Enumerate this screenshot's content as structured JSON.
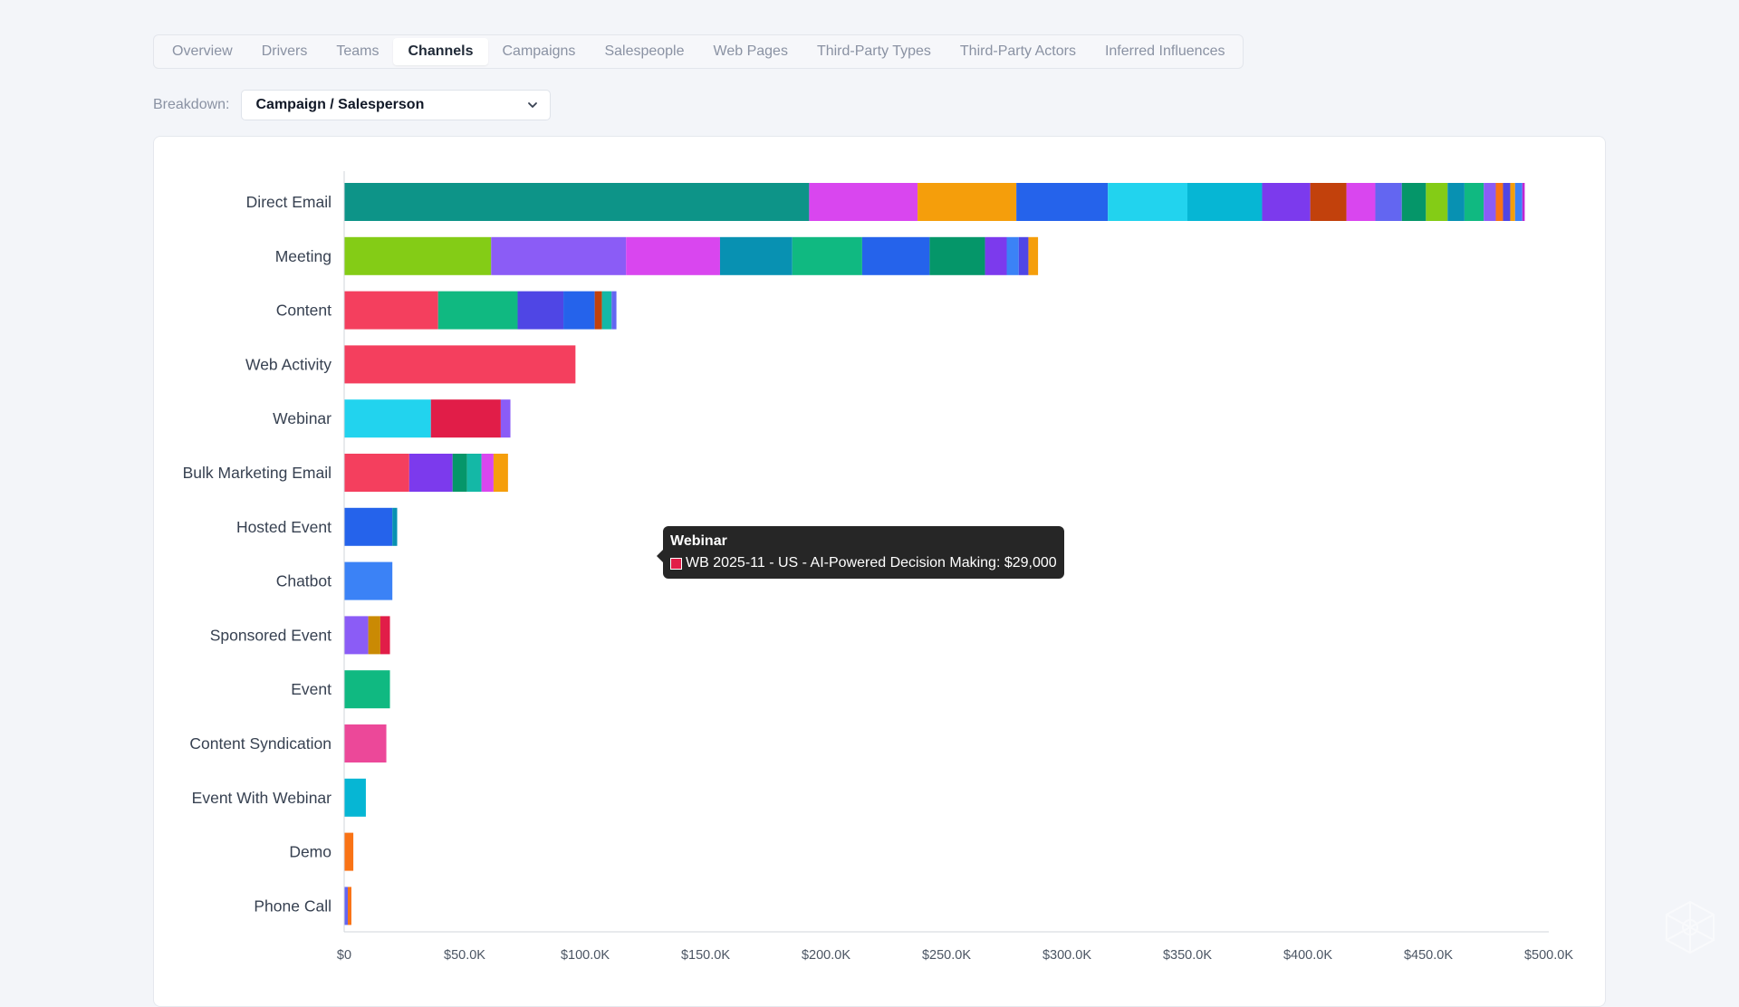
{
  "tabs": [
    {
      "label": "Overview",
      "active": false
    },
    {
      "label": "Drivers",
      "active": false
    },
    {
      "label": "Teams",
      "active": false
    },
    {
      "label": "Channels",
      "active": true
    },
    {
      "label": "Campaigns",
      "active": false
    },
    {
      "label": "Salespeople",
      "active": false
    },
    {
      "label": "Web Pages",
      "active": false
    },
    {
      "label": "Third-Party Types",
      "active": false
    },
    {
      "label": "Third-Party Actors",
      "active": false
    },
    {
      "label": "Inferred Influences",
      "active": false
    }
  ],
  "breakdown": {
    "label": "Breakdown:",
    "selected": "Campaign / Salesperson"
  },
  "tooltip": {
    "title": "Webinar",
    "text": "WB 2025-11 - US - AI-Powered Decision Making: $29,000",
    "color": "#e11d48"
  },
  "chart_data": {
    "type": "bar",
    "orientation": "horizontal",
    "stacked": true,
    "xlim": [
      0,
      500000
    ],
    "x_ticks": [
      0,
      50000,
      100000,
      150000,
      200000,
      250000,
      300000,
      350000,
      400000,
      450000,
      500000
    ],
    "x_tick_labels": [
      "$0",
      "$50.0K",
      "$100.0K",
      "$150.0K",
      "$200.0K",
      "$250.0K",
      "$300.0K",
      "$350.0K",
      "$400.0K",
      "$450.0K",
      "$500.0K"
    ],
    "grid": false,
    "legend": "none",
    "categories": [
      {
        "label": "Direct Email",
        "segments": [
          {
            "value": 193000,
            "color": "#0d9488"
          },
          {
            "value": 45000,
            "color": "#d946ef"
          },
          {
            "value": 41000,
            "color": "#f59e0b"
          },
          {
            "value": 38000,
            "color": "#2563eb"
          },
          {
            "value": 33000,
            "color": "#22d3ee"
          },
          {
            "value": 31000,
            "color": "#06b6d4"
          },
          {
            "value": 20000,
            "color": "#7c3aed"
          },
          {
            "value": 15000,
            "color": "#c2410c"
          },
          {
            "value": 12000,
            "color": "#d946ef"
          },
          {
            "value": 11000,
            "color": "#6366f1"
          },
          {
            "value": 10000,
            "color": "#059669"
          },
          {
            "value": 9000,
            "color": "#84cc16"
          },
          {
            "value": 7000,
            "color": "#0891b2"
          },
          {
            "value": 8000,
            "color": "#10b981"
          },
          {
            "value": 5000,
            "color": "#8b5cf6"
          },
          {
            "value": 3000,
            "color": "#f97316"
          },
          {
            "value": 3000,
            "color": "#4f46e5"
          },
          {
            "value": 2000,
            "color": "#f59e0b"
          },
          {
            "value": 3000,
            "color": "#3b82f6"
          },
          {
            "value": 1000,
            "color": "#c026d3"
          }
        ]
      },
      {
        "label": "Meeting",
        "segments": [
          {
            "value": 61000,
            "color": "#84cc16"
          },
          {
            "value": 56000,
            "color": "#8b5cf6"
          },
          {
            "value": 39000,
            "color": "#d946ef"
          },
          {
            "value": 30000,
            "color": "#0891b2"
          },
          {
            "value": 29000,
            "color": "#10b981"
          },
          {
            "value": 28000,
            "color": "#2563eb"
          },
          {
            "value": 23000,
            "color": "#059669"
          },
          {
            "value": 9000,
            "color": "#7c3aed"
          },
          {
            "value": 5000,
            "color": "#3b82f6"
          },
          {
            "value": 4000,
            "color": "#4f46e5"
          },
          {
            "value": 4000,
            "color": "#f59e0b"
          }
        ]
      },
      {
        "label": "Content",
        "segments": [
          {
            "value": 39000,
            "color": "#f43f5e"
          },
          {
            "value": 33000,
            "color": "#10b981"
          },
          {
            "value": 19000,
            "color": "#4f46e5"
          },
          {
            "value": 13000,
            "color": "#2563eb"
          },
          {
            "value": 3000,
            "color": "#c2410c"
          },
          {
            "value": 4000,
            "color": "#14b8a6"
          },
          {
            "value": 2000,
            "color": "#6366f1"
          }
        ]
      },
      {
        "label": "Web Activity",
        "segments": [
          {
            "value": 96000,
            "color": "#f43f5e"
          }
        ]
      },
      {
        "label": "Webinar",
        "segments": [
          {
            "value": 36000,
            "color": "#22d3ee"
          },
          {
            "value": 29000,
            "color": "#e11d48"
          },
          {
            "value": 4000,
            "color": "#8b5cf6"
          }
        ]
      },
      {
        "label": "Bulk Marketing Email",
        "segments": [
          {
            "value": 27000,
            "color": "#f43f5e"
          },
          {
            "value": 18000,
            "color": "#7c3aed"
          },
          {
            "value": 6000,
            "color": "#059669"
          },
          {
            "value": 6000,
            "color": "#14b8a6"
          },
          {
            "value": 5000,
            "color": "#d946ef"
          },
          {
            "value": 6000,
            "color": "#f59e0b"
          }
        ]
      },
      {
        "label": "Hosted Event",
        "segments": [
          {
            "value": 20000,
            "color": "#2563eb"
          },
          {
            "value": 2000,
            "color": "#0891b2"
          }
        ]
      },
      {
        "label": "Chatbot",
        "segments": [
          {
            "value": 20000,
            "color": "#3b82f6"
          }
        ]
      },
      {
        "label": "Sponsored Event",
        "segments": [
          {
            "value": 10000,
            "color": "#8b5cf6"
          },
          {
            "value": 5000,
            "color": "#ca8a04"
          },
          {
            "value": 4000,
            "color": "#e11d48"
          }
        ]
      },
      {
        "label": "Event",
        "segments": [
          {
            "value": 19000,
            "color": "#10b981"
          }
        ]
      },
      {
        "label": "Content Syndication",
        "segments": [
          {
            "value": 17500,
            "color": "#ec4899"
          }
        ]
      },
      {
        "label": "Event With Webinar",
        "segments": [
          {
            "value": 9000,
            "color": "#06b6d4"
          }
        ]
      },
      {
        "label": "Demo",
        "segments": [
          {
            "value": 3800,
            "color": "#f97316"
          }
        ]
      },
      {
        "label": "Phone Call",
        "segments": [
          {
            "value": 1500,
            "color": "#6366f1"
          },
          {
            "value": 1500,
            "color": "#f97316"
          }
        ]
      }
    ]
  }
}
